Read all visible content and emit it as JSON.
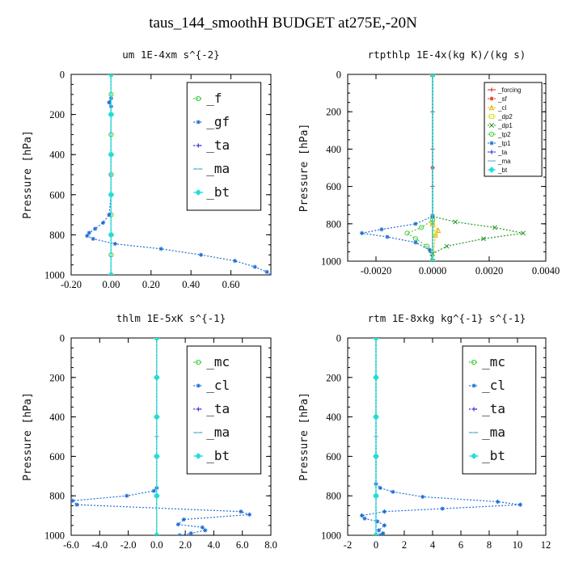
{
  "title": "taus_144_smoothH  BUDGET at275E,-20N",
  "chart_data": [
    {
      "type": "line",
      "title": "um   1E-4xm s^{-2}",
      "ylabel": "Pressure [hPa]",
      "xlim": [
        -0.2,
        0.8
      ],
      "ylim": [
        1000,
        0
      ],
      "xticks": [
        "-0.20",
        "0.00",
        "0.20",
        "0.40",
        "0.60"
      ],
      "xtick_values": [
        -0.2,
        0,
        0.2,
        0.4,
        0.6
      ],
      "yticks": [
        "0",
        "200",
        "400",
        "600",
        "800",
        "1000"
      ],
      "legend_style": "big",
      "series": [
        {
          "name": "_f",
          "color": "#33cc33",
          "dash": "2,2",
          "marker": "circle",
          "points": [
            [
              0,
              0
            ],
            [
              0,
              100
            ],
            [
              0,
              200
            ],
            [
              0,
              300
            ],
            [
              0,
              400
            ],
            [
              0,
              500
            ],
            [
              0,
              600
            ],
            [
              0,
              700
            ],
            [
              0,
              800
            ],
            [
              0,
              900
            ],
            [
              0,
              1000
            ]
          ]
        },
        {
          "name": "_gf",
          "color": "#1f6fd6",
          "dash": "2,2",
          "marker": "star",
          "points": [
            [
              0,
              0
            ],
            [
              0,
              120
            ],
            [
              -0.01,
              140
            ],
            [
              0,
              160
            ],
            [
              0,
              200
            ],
            [
              0,
              400
            ],
            [
              0,
              600
            ],
            [
              -0.01,
              700
            ],
            [
              -0.04,
              740
            ],
            [
              -0.08,
              770
            ],
            [
              -0.11,
              790
            ],
            [
              -0.12,
              805
            ],
            [
              -0.09,
              820
            ],
            [
              0.02,
              845
            ],
            [
              0.25,
              870
            ],
            [
              0.45,
              900
            ],
            [
              0.62,
              930
            ],
            [
              0.72,
              960
            ],
            [
              0.78,
              985
            ],
            [
              0.8,
              1000
            ]
          ]
        },
        {
          "name": "_ta",
          "color": "#2222cc",
          "dash": "2,2",
          "marker": "plus",
          "points": [
            [
              0,
              0
            ],
            [
              0,
              500
            ],
            [
              0,
              1000
            ]
          ]
        },
        {
          "name": "_ma",
          "color": "#4aa8d8",
          "dash": "4,3",
          "marker": "dash",
          "points": [
            [
              0,
              0
            ],
            [
              0,
              500
            ],
            [
              0,
              1000
            ]
          ]
        },
        {
          "name": "_bt",
          "color": "#22dddd",
          "dash": "",
          "marker": "diamond",
          "points": [
            [
              0,
              0
            ],
            [
              0,
              200
            ],
            [
              0,
              400
            ],
            [
              0,
              600
            ],
            [
              0,
              800
            ],
            [
              0,
              1000
            ]
          ]
        }
      ]
    },
    {
      "type": "line",
      "title": "rtpthlp   1E-4x(kg K)/(kg s)",
      "ylabel": "Pressure [hPa]",
      "xlim": [
        -0.003,
        0.004
      ],
      "ylim": [
        1000,
        0
      ],
      "xticks": [
        "-0.0020",
        "0.0000",
        "0.0020",
        "0.0040"
      ],
      "xtick_values": [
        -0.002,
        0,
        0.002,
        0.004
      ],
      "yticks": [
        "0",
        "200",
        "400",
        "600",
        "800",
        "1000"
      ],
      "legend_style": "small",
      "series": [
        {
          "name": "_forcing",
          "color": "#cc2222",
          "dash": "",
          "marker": "plus",
          "points": [
            [
              0,
              0
            ],
            [
              0,
              200
            ],
            [
              0,
              400
            ],
            [
              0,
              600
            ],
            [
              0,
              800
            ],
            [
              0,
              1000
            ]
          ]
        },
        {
          "name": "_sf",
          "color": "#dd3322",
          "dash": "2,2",
          "marker": "star",
          "points": [
            [
              0,
              0
            ],
            [
              0,
              500
            ],
            [
              0,
              1000
            ]
          ]
        },
        {
          "name": "_cl",
          "color": "#e0b000",
          "dash": "2,2",
          "marker": "triangle",
          "points": [
            [
              0,
              0
            ],
            [
              0,
              800
            ],
            [
              0.0002,
              835
            ],
            [
              0.0001,
              860
            ],
            [
              0,
              1000
            ]
          ]
        },
        {
          "name": "_dp2",
          "color": "#dddd22",
          "dash": "2,2",
          "marker": "square",
          "points": [
            [
              0,
              0
            ],
            [
              0,
              800
            ],
            [
              0.0001,
              850
            ],
            [
              0,
              1000
            ]
          ]
        },
        {
          "name": "_dp1",
          "color": "#229922",
          "dash": "2,2",
          "marker": "cross",
          "points": [
            [
              0,
              0
            ],
            [
              0,
              760
            ],
            [
              0.0008,
              790
            ],
            [
              0.0022,
              820
            ],
            [
              0.0032,
              850
            ],
            [
              0.0018,
              880
            ],
            [
              0.0005,
              920
            ],
            [
              0,
              960
            ],
            [
              0,
              1000
            ]
          ]
        },
        {
          "name": "_tp2",
          "color": "#44cc44",
          "dash": "2,2",
          "marker": "circle",
          "points": [
            [
              0,
              0
            ],
            [
              0,
              780
            ],
            [
              -0.0004,
              820
            ],
            [
              -0.0009,
              850
            ],
            [
              -0.0006,
              880
            ],
            [
              -0.0002,
              920
            ],
            [
              0,
              1000
            ]
          ]
        },
        {
          "name": "_tp1",
          "color": "#1f6fd6",
          "dash": "2,2",
          "marker": "star",
          "points": [
            [
              0,
              0
            ],
            [
              0,
              760
            ],
            [
              -0.0006,
              800
            ],
            [
              -0.0018,
              830
            ],
            [
              -0.0025,
              850
            ],
            [
              -0.0016,
              870
            ],
            [
              -0.0006,
              900
            ],
            [
              -0.0001,
              940
            ],
            [
              0,
              1000
            ]
          ]
        },
        {
          "name": "_ta",
          "color": "#2222cc",
          "dash": "2,2",
          "marker": "plus",
          "points": [
            [
              0,
              0
            ],
            [
              0,
              1000
            ]
          ]
        },
        {
          "name": "_ma",
          "color": "#4aa8d8",
          "dash": "4,3",
          "marker": "dash",
          "points": [
            [
              0,
              0
            ],
            [
              0,
              1000
            ]
          ]
        },
        {
          "name": "_bt",
          "color": "#22dddd",
          "dash": "",
          "marker": "diamond",
          "points": [
            [
              0,
              0
            ],
            [
              0,
              1000
            ]
          ]
        }
      ]
    },
    {
      "type": "line",
      "title": "thlm   1E-5xK s^{-1}",
      "ylabel": "Pressure [hPa]",
      "xlim": [
        -6,
        8
      ],
      "ylim": [
        1000,
        0
      ],
      "xticks": [
        "-6.0",
        "-4.0",
        "-2.0",
        "0.0",
        "2.0",
        "4.0",
        "6.0",
        "8.0"
      ],
      "xtick_values": [
        -6,
        -4,
        -2,
        0,
        2,
        4,
        6,
        8
      ],
      "yticks": [
        "0",
        "200",
        "400",
        "600",
        "800",
        "1000"
      ],
      "legend_style": "big",
      "series": [
        {
          "name": "_mc",
          "color": "#33cc33",
          "dash": "2,2",
          "marker": "circle",
          "points": [
            [
              0,
              0
            ],
            [
              0,
              200
            ],
            [
              0,
              400
            ],
            [
              0,
              600
            ],
            [
              0,
              800
            ],
            [
              0,
              1000
            ]
          ]
        },
        {
          "name": "_cl",
          "color": "#1f6fd6",
          "dash": "2,2",
          "marker": "star",
          "points": [
            [
              0,
              0
            ],
            [
              0,
              760
            ],
            [
              -0.2,
              775
            ],
            [
              -2.1,
              800
            ],
            [
              -5.9,
              825
            ],
            [
              -5.6,
              845
            ],
            [
              5.9,
              880
            ],
            [
              6.5,
              895
            ],
            [
              1.9,
              920
            ],
            [
              1.5,
              945
            ],
            [
              3.2,
              960
            ],
            [
              3.4,
              975
            ],
            [
              2.4,
              990
            ],
            [
              1.6,
              1000
            ]
          ]
        },
        {
          "name": "_ta",
          "color": "#2222cc",
          "dash": "2,2",
          "marker": "plus",
          "points": [
            [
              0,
              0
            ],
            [
              0,
              500
            ],
            [
              0,
              1000
            ]
          ]
        },
        {
          "name": "_ma",
          "color": "#4aa8d8",
          "dash": "4,3",
          "marker": "dash",
          "points": [
            [
              0,
              0
            ],
            [
              0,
              500
            ],
            [
              0,
              1000
            ]
          ]
        },
        {
          "name": "_bt",
          "color": "#22dddd",
          "dash": "",
          "marker": "diamond",
          "points": [
            [
              0,
              0
            ],
            [
              0,
              200
            ],
            [
              0,
              400
            ],
            [
              0,
              600
            ],
            [
              0,
              800
            ],
            [
              0,
              1000
            ]
          ]
        }
      ]
    },
    {
      "type": "line",
      "title": "rtm   1E-8xkg kg^{-1} s^{-1}",
      "ylabel": "Pressure [hPa]",
      "xlim": [
        -2,
        12
      ],
      "ylim": [
        1000,
        0
      ],
      "xticks": [
        "-2",
        "0",
        "2",
        "4",
        "6",
        "8",
        "10",
        "12"
      ],
      "xtick_values": [
        -2,
        0,
        2,
        4,
        6,
        8,
        10,
        12
      ],
      "yticks": [
        "0",
        "200",
        "400",
        "600",
        "800",
        "1000"
      ],
      "legend_style": "big",
      "series": [
        {
          "name": "_mc",
          "color": "#33cc33",
          "dash": "2,2",
          "marker": "circle",
          "points": [
            [
              0,
              0
            ],
            [
              0,
              200
            ],
            [
              0,
              400
            ],
            [
              0,
              600
            ],
            [
              0,
              800
            ],
            [
              0,
              1000
            ]
          ]
        },
        {
          "name": "_cl",
          "color": "#1f6fd6",
          "dash": "2,2",
          "marker": "star",
          "points": [
            [
              0,
              0
            ],
            [
              0,
              740
            ],
            [
              0.3,
              760
            ],
            [
              1.2,
              780
            ],
            [
              3.3,
              805
            ],
            [
              8.6,
              830
            ],
            [
              10.2,
              845
            ],
            [
              4.7,
              865
            ],
            [
              0.6,
              880
            ],
            [
              -1.0,
              900
            ],
            [
              -0.8,
              915
            ],
            [
              0.1,
              930
            ],
            [
              0.6,
              950
            ],
            [
              0.2,
              975
            ],
            [
              0.5,
              990
            ],
            [
              0.3,
              1000
            ]
          ]
        },
        {
          "name": "_ta",
          "color": "#2222cc",
          "dash": "2,2",
          "marker": "plus",
          "points": [
            [
              0,
              0
            ],
            [
              0,
              500
            ],
            [
              0,
              1000
            ]
          ]
        },
        {
          "name": "_ma",
          "color": "#4aa8d8",
          "dash": "4,3",
          "marker": "dash",
          "points": [
            [
              0,
              0
            ],
            [
              0,
              500
            ],
            [
              0,
              1000
            ]
          ]
        },
        {
          "name": "_bt",
          "color": "#22dddd",
          "dash": "",
          "marker": "diamond",
          "points": [
            [
              0,
              0
            ],
            [
              0,
              200
            ],
            [
              0,
              400
            ],
            [
              0,
              600
            ],
            [
              0,
              800
            ],
            [
              0,
              1000
            ]
          ]
        }
      ]
    }
  ]
}
